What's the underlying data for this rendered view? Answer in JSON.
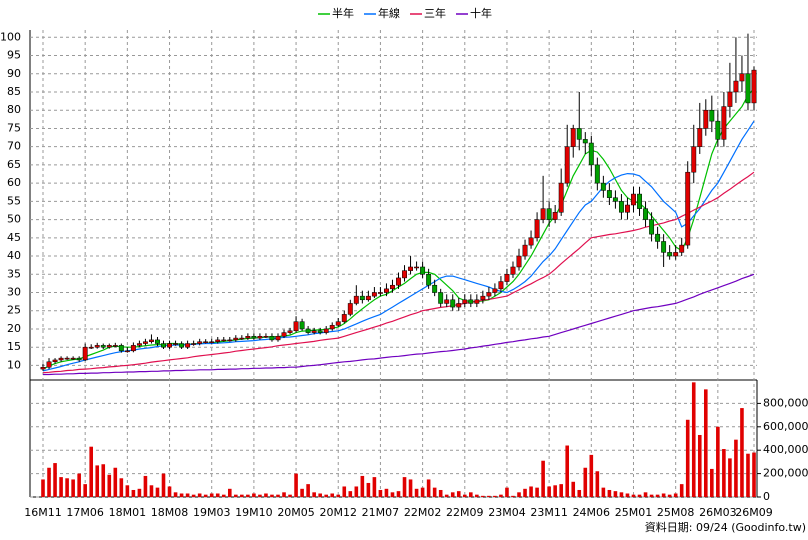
{
  "chart_data": {
    "type": "candlestick",
    "footnote": "資料日期: 09/24  (Goodinfo.tw)",
    "up_color": "#e00000",
    "down_color": "#00a000",
    "categories": [
      "16M11",
      null,
      null,
      null,
      null,
      null,
      null,
      "17M06",
      null,
      null,
      null,
      null,
      null,
      null,
      "18M01",
      null,
      null,
      null,
      null,
      null,
      null,
      "18M08",
      null,
      null,
      null,
      null,
      null,
      null,
      "19M03",
      null,
      null,
      null,
      null,
      null,
      null,
      "19M10",
      null,
      null,
      null,
      null,
      null,
      null,
      "20M05",
      null,
      null,
      null,
      null,
      null,
      null,
      "20M12",
      null,
      null,
      null,
      null,
      null,
      null,
      "21M07",
      null,
      null,
      null,
      null,
      null,
      null,
      "22M02",
      null,
      null,
      null,
      null,
      null,
      null,
      "22M09",
      null,
      null,
      null,
      null,
      null,
      null,
      "23M04",
      null,
      null,
      null,
      null,
      null,
      null,
      "23M11",
      null,
      null,
      null,
      null,
      null,
      null,
      "24M06",
      null,
      null,
      null,
      null,
      null,
      null,
      "25M01",
      null,
      null,
      null,
      null,
      null,
      null,
      "25M08",
      null,
      null,
      null,
      null,
      null,
      null,
      "26M03",
      null,
      null,
      null,
      null,
      null,
      "26M09"
    ],
    "open": [
      9,
      9.5,
      11,
      11.5,
      12,
      12,
      12,
      11.5,
      15,
      15,
      15.5,
      15,
      15.5,
      15.5,
      14,
      14,
      15.5,
      16,
      16.5,
      17,
      16,
      15,
      16,
      16,
      15,
      16,
      16,
      16.5,
      16.5,
      16.5,
      17,
      17,
      17,
      17.5,
      17.5,
      18,
      17.5,
      18,
      18,
      17,
      18,
      19,
      19.5,
      22,
      20,
      19,
      19.5,
      19,
      20,
      21,
      22,
      24,
      27,
      29,
      28,
      29,
      30,
      30,
      31,
      32,
      34,
      36,
      37,
      37,
      35,
      32,
      30,
      27,
      28,
      26,
      27,
      28,
      27,
      28,
      29,
      30,
      31,
      33,
      35,
      37,
      40,
      43,
      45,
      50,
      53,
      50,
      52,
      60,
      70,
      75,
      72,
      71,
      65,
      60,
      58,
      56,
      55,
      52,
      54,
      57,
      53,
      50,
      46,
      44,
      41,
      40,
      41,
      43,
      63,
      70,
      75,
      80,
      77,
      72,
      81,
      85,
      88,
      90,
      82
    ],
    "high": [
      10.5,
      12,
      12,
      12.5,
      12.5,
      12.5,
      12.5,
      16,
      15.8,
      16.2,
      16,
      16,
      16.2,
      16,
      15,
      16.3,
      16.8,
      17.3,
      18.5,
      17.8,
      16.8,
      16.8,
      16.8,
      16.6,
      16.8,
      16.8,
      17.3,
      17.2,
      17.3,
      17.8,
      17.8,
      17.8,
      18.3,
      18.3,
      18.8,
      18.8,
      18.8,
      18.8,
      18.8,
      18.8,
      19.8,
      20.3,
      23.5,
      22.8,
      20.8,
      20.3,
      20.3,
      20.8,
      21.8,
      23,
      25,
      28,
      32,
      30.5,
      30.5,
      31.5,
      31.5,
      32.5,
      33.5,
      35.5,
      37.5,
      40,
      38.5,
      38.5,
      36.5,
      33.5,
      31,
      29.5,
      29.5,
      28.5,
      29.5,
      29.5,
      29.5,
      30.5,
      31.5,
      32.5,
      34.5,
      36.5,
      38.5,
      42,
      44.5,
      47,
      52,
      62,
      55,
      54,
      64,
      76,
      76,
      85,
      74,
      73,
      67,
      62,
      60,
      58,
      57,
      56,
      59,
      59,
      55,
      52,
      48,
      46,
      43,
      43,
      45,
      66,
      76,
      82,
      83,
      84,
      80,
      85,
      93,
      100,
      95,
      101,
      92
    ],
    "low": [
      8.5,
      9,
      10.5,
      11,
      11.5,
      11.5,
      11,
      11.2,
      14.5,
      14.6,
      14.5,
      14.6,
      15,
      13.5,
      13.5,
      13.6,
      15,
      15.5,
      16,
      15.3,
      14.5,
      14.5,
      15.4,
      14.5,
      14.5,
      15.4,
      15.5,
      16,
      16,
      16,
      16.5,
      16.5,
      16.5,
      17,
      17,
      17,
      17,
      17.5,
      16.5,
      16.5,
      17.5,
      18.5,
      19,
      19.5,
      18.5,
      18.5,
      18.5,
      18.5,
      19.5,
      20.5,
      21.5,
      23.5,
      26.5,
      27,
      27.5,
      28.5,
      29,
      29,
      30,
      31,
      33,
      35,
      36,
      34,
      31,
      29,
      26,
      26,
      25,
      25,
      26,
      26,
      26,
      27,
      28,
      29,
      30,
      32,
      34,
      36,
      39,
      42,
      44,
      49,
      48,
      49,
      51,
      59,
      67,
      69,
      68,
      62,
      58,
      56,
      54,
      53,
      50,
      50,
      52,
      51,
      48,
      44,
      42,
      37,
      39,
      39,
      40,
      42,
      60,
      68,
      73,
      74,
      70,
      70,
      78,
      82,
      85,
      80,
      80
    ],
    "close": [
      9.5,
      11,
      11.5,
      12,
      12,
      12,
      11.5,
      15,
      15,
      15.5,
      15,
      15.5,
      15.5,
      14,
      14,
      15.5,
      16,
      16.5,
      17,
      16,
      15,
      16,
      16,
      15,
      16,
      16,
      16.5,
      16.5,
      16.5,
      17,
      17,
      17,
      17.5,
      17.5,
      18,
      17.5,
      18,
      18,
      17,
      18,
      19,
      19.5,
      22,
      20,
      19,
      19.5,
      19,
      20,
      21,
      22,
      24,
      27,
      29,
      28,
      29,
      30,
      30,
      31,
      32,
      34,
      36,
      37,
      37,
      35,
      32,
      30,
      27,
      28,
      26,
      27,
      28,
      27,
      28,
      29,
      30,
      31,
      33,
      35,
      37,
      40,
      43,
      45,
      50,
      53,
      50,
      52,
      60,
      70,
      75,
      72,
      71,
      65,
      60,
      58,
      56,
      55,
      52,
      54,
      57,
      53,
      50,
      46,
      44,
      41,
      40,
      41,
      43,
      63,
      70,
      75,
      80,
      77,
      72,
      81,
      85,
      88,
      90,
      82,
      91
    ],
    "ylim": [
      6,
      102
    ],
    "yticks": [
      10,
      15,
      20,
      25,
      30,
      35,
      40,
      45,
      50,
      55,
      60,
      65,
      70,
      75,
      80,
      85,
      90,
      95,
      100
    ],
    "series": [
      {
        "name": "半年",
        "color": "#00c000",
        "values": [
          9,
          9.8,
          10.5,
          11,
          11.3,
          11.6,
          11.8,
          12.4,
          13,
          13.6,
          14.2,
          15,
          15.3,
          15.1,
          15,
          15,
          15.2,
          15.4,
          15.6,
          15.7,
          15.8,
          16,
          16,
          15.8,
          15.8,
          15.9,
          16,
          16.1,
          16.2,
          16.4,
          16.6,
          16.8,
          17,
          17.2,
          17.4,
          17.5,
          17.6,
          17.8,
          17.8,
          17.9,
          18.1,
          18.3,
          19,
          19.4,
          19.5,
          19.7,
          19.8,
          19.9,
          20.2,
          20.5,
          21.5,
          22.8,
          24.2,
          25.5,
          26.8,
          28,
          29,
          29.5,
          30.5,
          31.5,
          32.5,
          33.8,
          35,
          35.5,
          35.5,
          35,
          33.5,
          32,
          30.5,
          28.5,
          27.8,
          27.5,
          27.5,
          27.7,
          28,
          29,
          30,
          31.5,
          33,
          35,
          37.5,
          40,
          43,
          46,
          49,
          51,
          54,
          58,
          62,
          65,
          68,
          69,
          68.5,
          66.5,
          64,
          61,
          58,
          56,
          55,
          54.5,
          53,
          51,
          49,
          47,
          45,
          42.5,
          41.5,
          45,
          50,
          56,
          62,
          68,
          72,
          75,
          77,
          79,
          81,
          84,
          86
        ]
      },
      {
        "name": "年線",
        "color": "#0070ff",
        "values": [
          8.5,
          8.9,
          9.3,
          9.7,
          10.2,
          10.6,
          11,
          11.5,
          11.9,
          12.3,
          12.7,
          13.1,
          13.5,
          13.8,
          14,
          14.2,
          14.5,
          14.7,
          14.9,
          15.2,
          15.4,
          15.5,
          15.6,
          15.6,
          15.7,
          15.8,
          15.9,
          16,
          16,
          16.1,
          16.2,
          16.3,
          16.5,
          16.6,
          16.7,
          16.8,
          17,
          17.1,
          17.3,
          17.5,
          17.7,
          17.8,
          18,
          18.2,
          18.4,
          18.7,
          18.9,
          19.1,
          19.3,
          19.5,
          20,
          20.7,
          21.4,
          22.1,
          22.8,
          23.4,
          24,
          25,
          26,
          27,
          28,
          29,
          30,
          31,
          32,
          33,
          34,
          34.5,
          34.5,
          34,
          33.5,
          33,
          32.5,
          32,
          31.5,
          30.8,
          30.3,
          30,
          30.8,
          31.8,
          33,
          34.5,
          36.5,
          38.5,
          40,
          42,
          44.5,
          47,
          49.5,
          52,
          54,
          55,
          57,
          59,
          60.5,
          61.5,
          62.2,
          62.6,
          62.5,
          62,
          60.5,
          59,
          57,
          55,
          53.5,
          52,
          48,
          49,
          51,
          53,
          55.5,
          58,
          60,
          63,
          66,
          69,
          72,
          74.5,
          77
        ]
      },
      {
        "name": "三年",
        "color": "#e0104f",
        "values": [
          8,
          8.1,
          8.3,
          8.4,
          8.6,
          8.7,
          8.9,
          9,
          9.1,
          9.3,
          9.4,
          9.6,
          9.7,
          9.9,
          10,
          10.2,
          10.4,
          10.6,
          10.9,
          11.1,
          11.3,
          11.5,
          11.7,
          11.9,
          12.1,
          12.4,
          12.6,
          12.8,
          13,
          13.2,
          13.4,
          13.6,
          13.9,
          14.1,
          14.3,
          14.5,
          14.7,
          14.9,
          15.1,
          15.4,
          15.6,
          15.8,
          16,
          16.2,
          16.4,
          16.6,
          16.9,
          17.1,
          17.3,
          17.5,
          18,
          18.5,
          19,
          19.5,
          20,
          20.5,
          21,
          21.6,
          22.1,
          22.7,
          23.3,
          23.9,
          24.4,
          25,
          25.3,
          25.6,
          25.9,
          26.1,
          26.4,
          26.7,
          27,
          27.3,
          27.6,
          27.9,
          28.1,
          28.4,
          28.7,
          29,
          29.9,
          30.7,
          31.6,
          32.4,
          33.3,
          34.1,
          35,
          36.4,
          37.9,
          39.3,
          40.7,
          42.1,
          43.6,
          45,
          45.3,
          45.6,
          45.9,
          46.1,
          46.4,
          46.7,
          47,
          47.4,
          47.9,
          48.3,
          48.7,
          49.1,
          49.6,
          50,
          50.9,
          51.7,
          52.6,
          53.4,
          54.3,
          55.1,
          56,
          57.2,
          58.3,
          59.5,
          60.7,
          61.8,
          63
        ]
      },
      {
        "name": "十年",
        "color": "#7000c0",
        "values": [
          7.5,
          7.5,
          7.6,
          7.6,
          7.7,
          7.7,
          7.8,
          7.8,
          7.9,
          7.9,
          8,
          8,
          8.1,
          8.1,
          8.2,
          8.2,
          8.3,
          8.3,
          8.4,
          8.4,
          8.5,
          8.5,
          8.6,
          8.6,
          8.7,
          8.7,
          8.8,
          8.8,
          8.8,
          8.9,
          8.9,
          9,
          9,
          9.1,
          9.1,
          9.2,
          9.2,
          9.3,
          9.3,
          9.4,
          9.4,
          9.5,
          9.5,
          9.7,
          9.9,
          10,
          10.2,
          10.4,
          10.6,
          10.8,
          11,
          11.1,
          11.3,
          11.5,
          11.7,
          11.8,
          12,
          12.2,
          12.4,
          12.5,
          12.7,
          12.9,
          13.1,
          13.2,
          13.4,
          13.6,
          13.8,
          13.9,
          14.1,
          14.3,
          14.5,
          14.8,
          15,
          15.3,
          15.5,
          15.8,
          16,
          16.3,
          16.5,
          16.8,
          17,
          17.3,
          17.5,
          17.8,
          18,
          18.5,
          19,
          19.5,
          20,
          20.5,
          21,
          21.5,
          22,
          22.5,
          23,
          23.5,
          24,
          24.5,
          25,
          25.3,
          25.6,
          25.9,
          26.1,
          26.4,
          26.7,
          27,
          27.6,
          28.2,
          28.8,
          29.5,
          30.1,
          30.7,
          31.3,
          31.9,
          32.5,
          33.1,
          33.8,
          34.4,
          35
        ]
      }
    ],
    "volume": {
      "color": "#e00000",
      "values": [
        150000,
        250000,
        290000,
        170000,
        160000,
        150000,
        200000,
        110000,
        430000,
        270000,
        280000,
        190000,
        250000,
        160000,
        100000,
        60000,
        70000,
        180000,
        100000,
        80000,
        200000,
        90000,
        40000,
        30000,
        30000,
        20000,
        30000,
        20000,
        30000,
        30000,
        20000,
        70000,
        20000,
        20000,
        20000,
        30000,
        20000,
        30000,
        20000,
        20000,
        40000,
        20000,
        200000,
        70000,
        110000,
        40000,
        30000,
        20000,
        30000,
        20000,
        90000,
        50000,
        90000,
        180000,
        120000,
        170000,
        60000,
        70000,
        40000,
        50000,
        170000,
        150000,
        70000,
        80000,
        150000,
        80000,
        60000,
        20000,
        40000,
        50000,
        20000,
        40000,
        20000,
        10000,
        10000,
        10000,
        20000,
        80000,
        10000,
        40000,
        70000,
        90000,
        80000,
        310000,
        90000,
        100000,
        110000,
        440000,
        130000,
        60000,
        250000,
        360000,
        220000,
        80000,
        60000,
        50000,
        40000,
        30000,
        20000,
        20000,
        40000,
        20000,
        20000,
        30000,
        20000,
        30000,
        110000,
        660000,
        980000,
        530000,
        920000,
        240000,
        600000,
        410000,
        330000,
        490000,
        760000,
        370000,
        380000
      ],
      "ylim": [
        0,
        1000000
      ],
      "yticks": [
        0,
        {
          "value": 200000,
          "label": "200,000"
        },
        {
          "value": 400000,
          "label": "400,000"
        },
        {
          "value": 600000,
          "label": "600,000"
        },
        {
          "value": 800000,
          "label": "800,000"
        }
      ]
    }
  }
}
